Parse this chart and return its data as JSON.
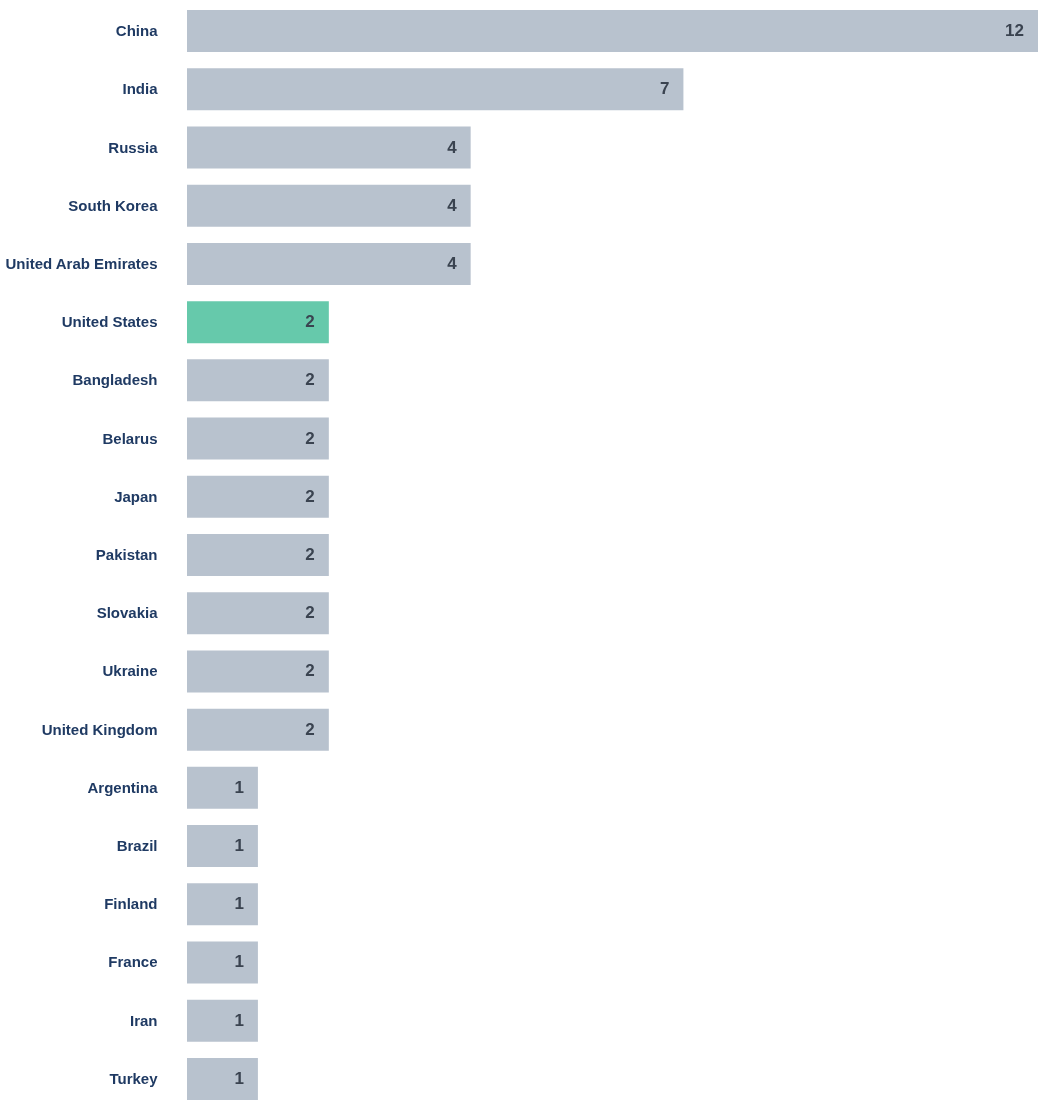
{
  "chart_data": {
    "type": "bar",
    "orientation": "horizontal",
    "data_labels": true,
    "grid": false,
    "categories": [
      "China",
      "India",
      "Russia",
      "South Korea",
      "United Arab Emirates",
      "United States",
      "Bangladesh",
      "Belarus",
      "Japan",
      "Pakistan",
      "Slovakia",
      "Ukraine",
      "United Kingdom",
      "Argentina",
      "Brazil",
      "Finland",
      "France",
      "Iran",
      "Turkey"
    ],
    "values": [
      12,
      7,
      4,
      4,
      4,
      2,
      2,
      2,
      2,
      2,
      2,
      2,
      2,
      1,
      1,
      1,
      1,
      1,
      1
    ],
    "colors": [
      "#b8c2ce",
      "#b8c2ce",
      "#b8c2ce",
      "#b8c2ce",
      "#b8c2ce",
      "#66c9ab",
      "#b8c2ce",
      "#b8c2ce",
      "#b8c2ce",
      "#b8c2ce",
      "#b8c2ce",
      "#b8c2ce",
      "#b8c2ce",
      "#b8c2ce",
      "#b8c2ce",
      "#b8c2ce",
      "#b8c2ce",
      "#b8c2ce",
      "#b8c2ce"
    ]
  }
}
